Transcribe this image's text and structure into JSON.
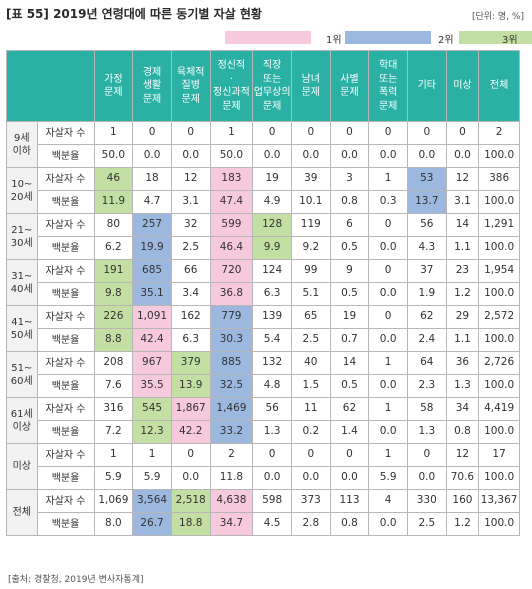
{
  "title": "[표 55] 2019년 연령대에 따른 동기별 자살 현황",
  "unit": "[단위: 명, %]",
  "legend": [
    {
      "label": "1위",
      "color": "#f6c9dc"
    },
    {
      "label": "2위",
      "color": "#9cb8df"
    },
    {
      "label": "3위",
      "color": "#c4dfa3"
    }
  ],
  "columns": [
    "가정\n문제",
    "경제\n생활\n문제",
    "육체적\n질병\n문제",
    "정신적\n·\n정신과적\n문제",
    "직장\n또는\n업무상의\n문제",
    "남녀\n문제",
    "사별\n문제",
    "학대\n또는\n폭력\n문제",
    "기타",
    "미상",
    "전체"
  ],
  "groups": [
    {
      "label": "9세\n이하",
      "rows": [
        {
          "label": "자살자 수",
          "values": [
            "1",
            "0",
            "0",
            "1",
            "0",
            "0",
            "0",
            "0",
            "0",
            "0",
            "2"
          ],
          "ranks": [
            0,
            0,
            0,
            0,
            0,
            0,
            0,
            0,
            0,
            0,
            0
          ]
        },
        {
          "label": "백분율",
          "values": [
            "50.0",
            "0.0",
            "0.0",
            "50.0",
            "0.0",
            "0.0",
            "0.0",
            "0.0",
            "0.0",
            "0.0",
            "100.0"
          ],
          "ranks": [
            0,
            0,
            0,
            0,
            0,
            0,
            0,
            0,
            0,
            0,
            0
          ]
        }
      ]
    },
    {
      "label": "10~\n20세",
      "rows": [
        {
          "label": "자살자 수",
          "values": [
            "46",
            "18",
            "12",
            "183",
            "19",
            "39",
            "3",
            "1",
            "53",
            "12",
            "386"
          ],
          "ranks": [
            3,
            0,
            0,
            1,
            0,
            0,
            0,
            0,
            2,
            0,
            0
          ]
        },
        {
          "label": "백분율",
          "values": [
            "11.9",
            "4.7",
            "3.1",
            "47.4",
            "4.9",
            "10.1",
            "0.8",
            "0.3",
            "13.7",
            "3.1",
            "100.0"
          ],
          "ranks": [
            3,
            0,
            0,
            1,
            0,
            0,
            0,
            0,
            2,
            0,
            0
          ]
        }
      ]
    },
    {
      "label": "21~\n30세",
      "rows": [
        {
          "label": "자살자 수",
          "values": [
            "80",
            "257",
            "32",
            "599",
            "128",
            "119",
            "6",
            "0",
            "56",
            "14",
            "1,291"
          ],
          "ranks": [
            0,
            2,
            0,
            1,
            3,
            0,
            0,
            0,
            0,
            0,
            0
          ]
        },
        {
          "label": "백분율",
          "values": [
            "6.2",
            "19.9",
            "2.5",
            "46.4",
            "9.9",
            "9.2",
            "0.5",
            "0.0",
            "4.3",
            "1.1",
            "100.0"
          ],
          "ranks": [
            0,
            2,
            0,
            1,
            3,
            0,
            0,
            0,
            0,
            0,
            0
          ]
        }
      ]
    },
    {
      "label": "31~\n40세",
      "rows": [
        {
          "label": "자살자 수",
          "values": [
            "191",
            "685",
            "66",
            "720",
            "124",
            "99",
            "9",
            "0",
            "37",
            "23",
            "1,954"
          ],
          "ranks": [
            3,
            2,
            0,
            1,
            0,
            0,
            0,
            0,
            0,
            0,
            0
          ]
        },
        {
          "label": "백분율",
          "values": [
            "9.8",
            "35.1",
            "3.4",
            "36.8",
            "6.3",
            "5.1",
            "0.5",
            "0.0",
            "1.9",
            "1.2",
            "100.0"
          ],
          "ranks": [
            3,
            2,
            0,
            1,
            0,
            0,
            0,
            0,
            0,
            0,
            0
          ]
        }
      ]
    },
    {
      "label": "41~\n50세",
      "rows": [
        {
          "label": "자살자 수",
          "values": [
            "226",
            "1,091",
            "162",
            "779",
            "139",
            "65",
            "19",
            "0",
            "62",
            "29",
            "2,572"
          ],
          "ranks": [
            3,
            1,
            0,
            2,
            0,
            0,
            0,
            0,
            0,
            0,
            0
          ]
        },
        {
          "label": "백분율",
          "values": [
            "8.8",
            "42.4",
            "6.3",
            "30.3",
            "5.4",
            "2.5",
            "0.7",
            "0.0",
            "2.4",
            "1.1",
            "100.0"
          ],
          "ranks": [
            3,
            1,
            0,
            2,
            0,
            0,
            0,
            0,
            0,
            0,
            0
          ]
        }
      ]
    },
    {
      "label": "51~\n60세",
      "rows": [
        {
          "label": "자살자 수",
          "values": [
            "208",
            "967",
            "379",
            "885",
            "132",
            "40",
            "14",
            "1",
            "64",
            "36",
            "2,726"
          ],
          "ranks": [
            0,
            1,
            3,
            2,
            0,
            0,
            0,
            0,
            0,
            0,
            0
          ]
        },
        {
          "label": "백분율",
          "values": [
            "7.6",
            "35.5",
            "13.9",
            "32.5",
            "4.8",
            "1.5",
            "0.5",
            "0.0",
            "2.3",
            "1.3",
            "100.0"
          ],
          "ranks": [
            0,
            1,
            3,
            2,
            0,
            0,
            0,
            0,
            0,
            0,
            0
          ]
        }
      ]
    },
    {
      "label": "61세\n이상",
      "rows": [
        {
          "label": "자살자 수",
          "values": [
            "316",
            "545",
            "1,867",
            "1,469",
            "56",
            "11",
            "62",
            "1",
            "58",
            "34",
            "4,419"
          ],
          "ranks": [
            0,
            3,
            1,
            2,
            0,
            0,
            0,
            0,
            0,
            0,
            0
          ]
        },
        {
          "label": "백분율",
          "values": [
            "7.2",
            "12.3",
            "42.2",
            "33.2",
            "1.3",
            "0.2",
            "1.4",
            "0.0",
            "1.3",
            "0.8",
            "100.0"
          ],
          "ranks": [
            0,
            3,
            1,
            2,
            0,
            0,
            0,
            0,
            0,
            0,
            0
          ]
        }
      ]
    },
    {
      "label": "미상",
      "rows": [
        {
          "label": "자살자 수",
          "values": [
            "1",
            "1",
            "0",
            "2",
            "0",
            "0",
            "0",
            "1",
            "0",
            "12",
            "17"
          ],
          "ranks": [
            0,
            0,
            0,
            0,
            0,
            0,
            0,
            0,
            0,
            0,
            0
          ]
        },
        {
          "label": "백분율",
          "values": [
            "5.9",
            "5.9",
            "0.0",
            "11.8",
            "0.0",
            "0.0",
            "0.0",
            "5.9",
            "0.0",
            "70.6",
            "100.0"
          ],
          "ranks": [
            0,
            0,
            0,
            0,
            0,
            0,
            0,
            0,
            0,
            0,
            0
          ]
        }
      ]
    },
    {
      "label": "전체",
      "rows": [
        {
          "label": "자살자 수",
          "values": [
            "1,069",
            "3,564",
            "2,518",
            "4,638",
            "598",
            "373",
            "113",
            "4",
            "330",
            "160",
            "13,367"
          ],
          "ranks": [
            0,
            2,
            3,
            1,
            0,
            0,
            0,
            0,
            0,
            0,
            0
          ]
        },
        {
          "label": "백분율",
          "values": [
            "8.0",
            "26.7",
            "18.8",
            "34.7",
            "4.5",
            "2.8",
            "0.8",
            "0.0",
            "2.5",
            "1.2",
            "100.0"
          ],
          "ranks": [
            0,
            2,
            3,
            1,
            0,
            0,
            0,
            0,
            0,
            0,
            0
          ]
        }
      ]
    }
  ],
  "source": "[출처: 경찰청, 2019년 변사자통계]"
}
